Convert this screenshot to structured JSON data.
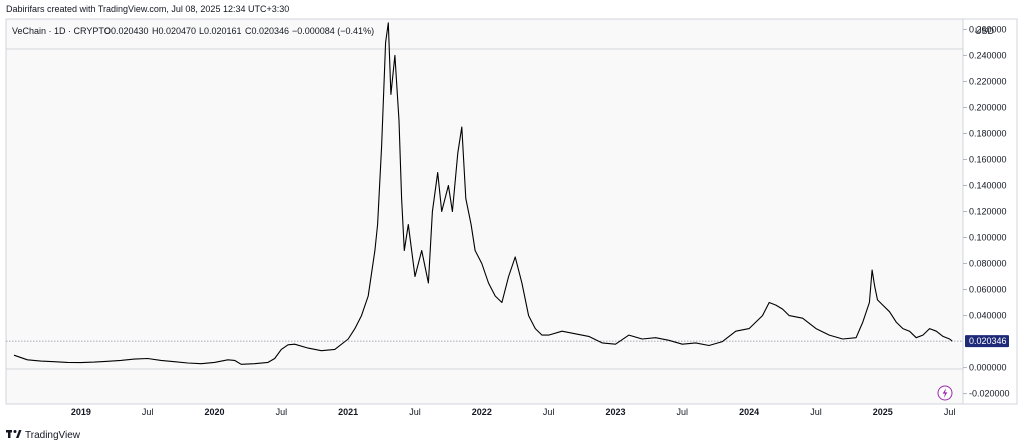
{
  "attribution": "Dabirifars created with TradingView.com, Jul 08, 2025 12:34 UTC+3:30",
  "footer_brand": "TradingView",
  "legend": {
    "symbol": "VeChain · 1D · CRYPTO",
    "open": "O0.020430",
    "high": "H0.020470",
    "low": "L0.020161",
    "close": "C0.020346",
    "change": "−0.000084 (−0.41%)"
  },
  "currency_button": "USD",
  "last_price_label": "0.020346",
  "icons": {
    "flash": "lightning-bolt-icon",
    "logo": "tradingview-logo-icon"
  },
  "colors": {
    "line": "#000000",
    "price_tag": "#1e2a78",
    "flash_icon": "#9c27b0",
    "panel_bg": "#f9f9f9"
  },
  "chart_data": {
    "type": "line",
    "series": [
      {
        "points": [
          [
            2018.5,
            0.0095
          ],
          [
            2018.6,
            0.006
          ],
          [
            2018.7,
            0.005
          ],
          [
            2018.8,
            0.0045
          ],
          [
            2018.9,
            0.004
          ],
          [
            2019.0,
            0.0038
          ],
          [
            2019.1,
            0.0042
          ],
          [
            2019.2,
            0.0048
          ],
          [
            2019.3,
            0.0055
          ],
          [
            2019.4,
            0.0065
          ],
          [
            2019.5,
            0.007
          ],
          [
            2019.6,
            0.0055
          ],
          [
            2019.7,
            0.0045
          ],
          [
            2019.8,
            0.0035
          ],
          [
            2019.9,
            0.003
          ],
          [
            2020.0,
            0.004
          ],
          [
            2020.1,
            0.006
          ],
          [
            2020.15,
            0.0055
          ],
          [
            2020.2,
            0.0025
          ],
          [
            2020.3,
            0.003
          ],
          [
            2020.4,
            0.004
          ],
          [
            2020.45,
            0.007
          ],
          [
            2020.5,
            0.014
          ],
          [
            2020.55,
            0.0175
          ],
          [
            2020.6,
            0.018
          ],
          [
            2020.7,
            0.015
          ],
          [
            2020.8,
            0.013
          ],
          [
            2020.9,
            0.014
          ],
          [
            2021.0,
            0.022
          ],
          [
            2021.05,
            0.03
          ],
          [
            2021.1,
            0.04
          ],
          [
            2021.15,
            0.055
          ],
          [
            2021.2,
            0.09
          ],
          [
            2021.22,
            0.11
          ],
          [
            2021.25,
            0.17
          ],
          [
            2021.28,
            0.25
          ],
          [
            2021.3,
            0.265
          ],
          [
            2021.32,
            0.21
          ],
          [
            2021.35,
            0.24
          ],
          [
            2021.38,
            0.19
          ],
          [
            2021.4,
            0.13
          ],
          [
            2021.42,
            0.09
          ],
          [
            2021.45,
            0.11
          ],
          [
            2021.5,
            0.07
          ],
          [
            2021.55,
            0.09
          ],
          [
            2021.6,
            0.065
          ],
          [
            2021.63,
            0.12
          ],
          [
            2021.67,
            0.15
          ],
          [
            2021.7,
            0.12
          ],
          [
            2021.75,
            0.14
          ],
          [
            2021.78,
            0.12
          ],
          [
            2021.82,
            0.165
          ],
          [
            2021.85,
            0.185
          ],
          [
            2021.88,
            0.13
          ],
          [
            2021.92,
            0.11
          ],
          [
            2021.95,
            0.09
          ],
          [
            2022.0,
            0.08
          ],
          [
            2022.05,
            0.065
          ],
          [
            2022.1,
            0.055
          ],
          [
            2022.15,
            0.05
          ],
          [
            2022.2,
            0.07
          ],
          [
            2022.25,
            0.085
          ],
          [
            2022.3,
            0.065
          ],
          [
            2022.35,
            0.04
          ],
          [
            2022.4,
            0.03
          ],
          [
            2022.45,
            0.025
          ],
          [
            2022.5,
            0.025
          ],
          [
            2022.6,
            0.028
          ],
          [
            2022.7,
            0.026
          ],
          [
            2022.8,
            0.024
          ],
          [
            2022.9,
            0.019
          ],
          [
            2023.0,
            0.018
          ],
          [
            2023.1,
            0.025
          ],
          [
            2023.2,
            0.022
          ],
          [
            2023.3,
            0.023
          ],
          [
            2023.4,
            0.021
          ],
          [
            2023.5,
            0.018
          ],
          [
            2023.6,
            0.019
          ],
          [
            2023.7,
            0.017
          ],
          [
            2023.8,
            0.02
          ],
          [
            2023.9,
            0.028
          ],
          [
            2024.0,
            0.03
          ],
          [
            2024.05,
            0.035
          ],
          [
            2024.1,
            0.04
          ],
          [
            2024.15,
            0.05
          ],
          [
            2024.2,
            0.048
          ],
          [
            2024.25,
            0.045
          ],
          [
            2024.3,
            0.04
          ],
          [
            2024.4,
            0.038
          ],
          [
            2024.5,
            0.03
          ],
          [
            2024.6,
            0.025
          ],
          [
            2024.7,
            0.022
          ],
          [
            2024.8,
            0.023
          ],
          [
            2024.85,
            0.035
          ],
          [
            2024.9,
            0.05
          ],
          [
            2024.92,
            0.075
          ],
          [
            2024.94,
            0.062
          ],
          [
            2024.96,
            0.052
          ],
          [
            2025.0,
            0.048
          ],
          [
            2025.05,
            0.043
          ],
          [
            2025.1,
            0.035
          ],
          [
            2025.15,
            0.03
          ],
          [
            2025.2,
            0.028
          ],
          [
            2025.25,
            0.023
          ],
          [
            2025.3,
            0.025
          ],
          [
            2025.35,
            0.03
          ],
          [
            2025.4,
            0.028
          ],
          [
            2025.45,
            0.024
          ],
          [
            2025.5,
            0.022
          ],
          [
            2025.52,
            0.0203
          ]
        ]
      }
    ],
    "x_range": [
      2018.44,
      2025.6
    ],
    "ylim": [
      -0.028,
      0.268
    ],
    "y_ticks": [
      {
        "v": 0.26,
        "label": "0.260000"
      },
      {
        "v": 0.24,
        "label": "0.240000"
      },
      {
        "v": 0.22,
        "label": "0.220000"
      },
      {
        "v": 0.2,
        "label": "0.200000"
      },
      {
        "v": 0.18,
        "label": "0.180000"
      },
      {
        "v": 0.16,
        "label": "0.160000"
      },
      {
        "v": 0.14,
        "label": "0.140000"
      },
      {
        "v": 0.12,
        "label": "0.120000"
      },
      {
        "v": 0.1,
        "label": "0.100000"
      },
      {
        "v": 0.08,
        "label": "0.080000"
      },
      {
        "v": 0.06,
        "label": "0.060000"
      },
      {
        "v": 0.04,
        "label": "0.040000"
      },
      {
        "v": 0.0,
        "label": "0.000000"
      },
      {
        "v": -0.02,
        "label": "-0.020000"
      }
    ],
    "x_ticks": [
      {
        "v": 2019.0,
        "label": "2019",
        "year": true
      },
      {
        "v": 2019.5,
        "label": "Jul",
        "year": false
      },
      {
        "v": 2020.0,
        "label": "2020",
        "year": true
      },
      {
        "v": 2020.5,
        "label": "Jul",
        "year": false
      },
      {
        "v": 2021.0,
        "label": "2021",
        "year": true
      },
      {
        "v": 2021.5,
        "label": "Jul",
        "year": false
      },
      {
        "v": 2022.0,
        "label": "2022",
        "year": true
      },
      {
        "v": 2022.5,
        "label": "Jul",
        "year": false
      },
      {
        "v": 2023.0,
        "label": "2023",
        "year": true
      },
      {
        "v": 2023.5,
        "label": "Jul",
        "year": false
      },
      {
        "v": 2024.0,
        "label": "2024",
        "year": true
      },
      {
        "v": 2024.5,
        "label": "Jul",
        "year": false
      },
      {
        "v": 2025.0,
        "label": "2025",
        "year": true
      },
      {
        "v": 2025.5,
        "label": "Jul",
        "year": false
      }
    ],
    "last_price": 0.020346,
    "grid": false,
    "legend": "top-left"
  }
}
